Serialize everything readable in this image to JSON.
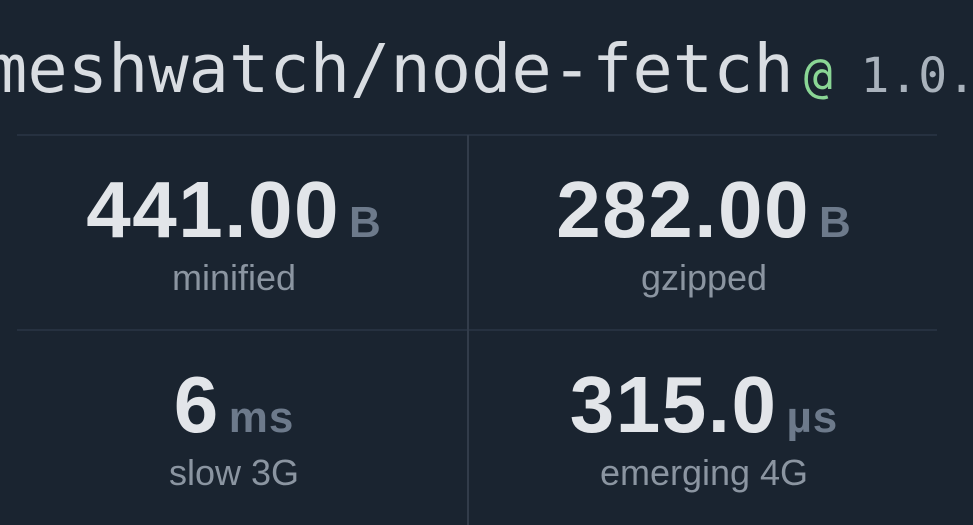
{
  "package": {
    "name": "meshwatch/node-fetch",
    "at_symbol": "@",
    "version": "1.0."
  },
  "stats": [
    {
      "id": "minified",
      "value": "441.00",
      "unit": "B",
      "label": "minified"
    },
    {
      "id": "gzipped",
      "value": "282.00",
      "unit": "B",
      "label": "gzipped"
    },
    {
      "id": "slow-3g",
      "value": "6",
      "unit": "ms",
      "label": "slow 3G"
    },
    {
      "id": "emerging-4g",
      "value": "315.0",
      "unit": "µs",
      "label": "emerging 4G"
    }
  ],
  "colors": {
    "background": "#1a2430",
    "title_text": "#d9dde2",
    "version_at_accent": "#8ad695",
    "version_text": "#a9b2bc",
    "stat_value": "#e2e5e9",
    "stat_unit": "#6d7a8b",
    "stat_label": "#8b95a1",
    "divider": "#263140"
  }
}
